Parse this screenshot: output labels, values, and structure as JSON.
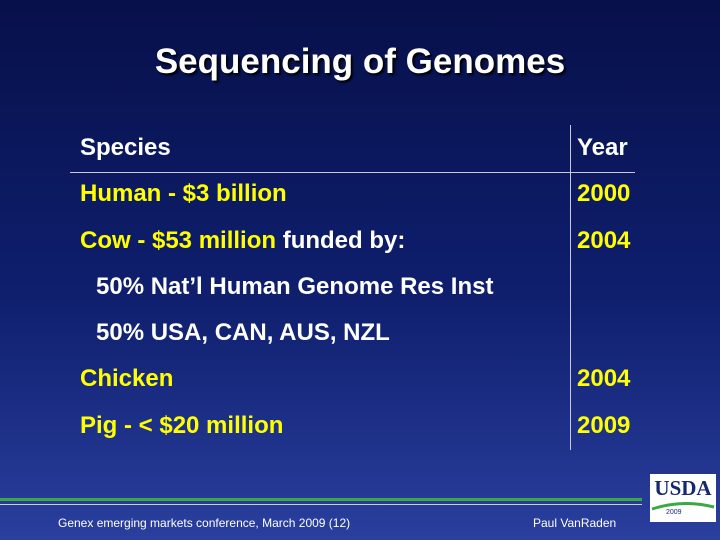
{
  "title": "Sequencing of Genomes",
  "table": {
    "header": [
      "Species",
      "Year"
    ],
    "rows": [
      {
        "species": "Human - $3 billion",
        "year": "2000"
      },
      {
        "species": "Cow - $53 million",
        "note": "funded by:",
        "year": "2004"
      },
      {
        "species": "Chicken",
        "year": "2004"
      },
      {
        "species": "Pig - < $20 million",
        "year": "2009"
      }
    ],
    "sub_lines": [
      "50% Nat’l Human Genome Res Inst",
      "50% USA, CAN, AUS, NZL"
    ]
  },
  "footer": {
    "left": "Genex emerging markets conference, March 2009 (12)",
    "right": "Paul VanRaden"
  },
  "logo": {
    "name": "USDA",
    "year": "2009"
  }
}
